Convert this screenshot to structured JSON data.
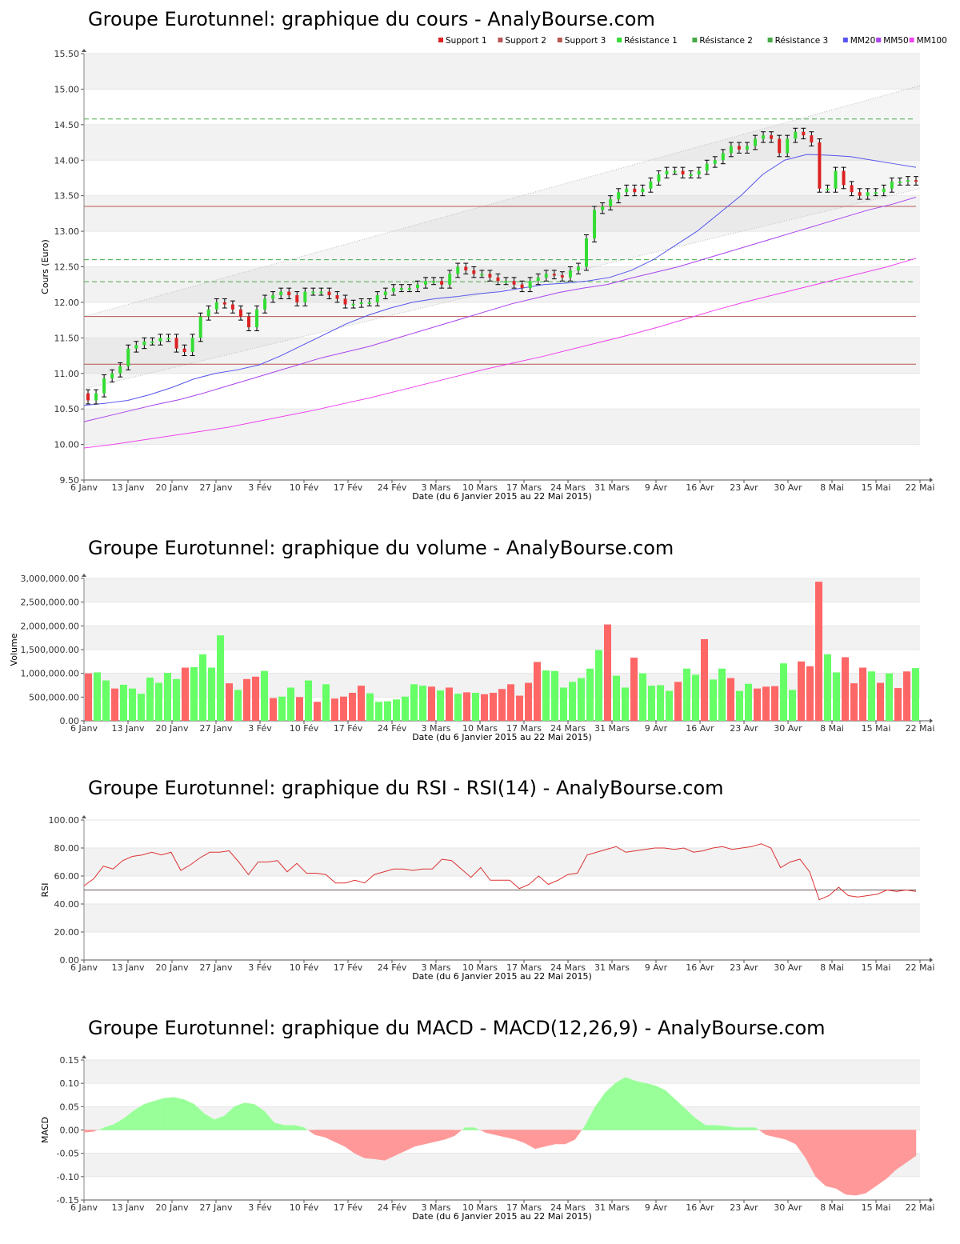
{
  "common": {
    "xlabel": "Date (du 6 Janvier 2015 au 22 Mai 2015)",
    "xticks": [
      "6 Janv",
      "13 Janv",
      "20 Janv",
      "27 Janv",
      "3 Fév",
      "10 Fév",
      "17 Fév",
      "24 Fév",
      "3 Mars",
      "10 Mars",
      "17 Mars",
      "24 Mars",
      "31 Mars",
      "9 Avr",
      "16 Avr",
      "23 Avr",
      "30 Avr",
      "8 Mai",
      "15 Mai",
      "22 Mai"
    ]
  },
  "colors": {
    "up": "#33dd33",
    "down": "#dd2222",
    "vol_up": "#66ff66",
    "vol_down": "#ff6666",
    "support": "#b85555",
    "resistance": "#44aa44",
    "mm20": "#5555ee",
    "mm50": "#aa44ee",
    "mm100": "#ee44ee",
    "rsi": "#dd3333",
    "macd_pos": "#99ff99",
    "macd_neg": "#ff9999"
  },
  "chart_data": [
    {
      "type": "candlestick",
      "title": "Groupe Eurotunnel: graphique du cours - AnalyBourse.com",
      "ylabel": "Cours (Euro)",
      "ylim": [
        9.5,
        15.5
      ],
      "yticks": [
        "9.50",
        "10.00",
        "10.50",
        "11.00",
        "11.50",
        "12.00",
        "12.50",
        "13.00",
        "13.50",
        "14.00",
        "14.50",
        "15.00",
        "15.50"
      ],
      "legend": [
        "Support 1",
        "Support 2",
        "Support 3",
        "Résistance 1",
        "Résistance 2",
        "Résistance 3",
        "MM20",
        "MM50",
        "MM100"
      ],
      "legend_position": "top-right",
      "levels": {
        "support": [
          13.35,
          11.8,
          11.13
        ],
        "resistance": [
          12.6,
          12.29,
          14.58
        ]
      },
      "close": [
        10.62,
        10.72,
        10.93,
        11.0,
        11.1,
        11.35,
        11.4,
        11.45,
        11.45,
        11.5,
        11.5,
        11.35,
        11.3,
        11.5,
        11.8,
        11.9,
        12.0,
        11.97,
        11.9,
        11.8,
        11.65,
        11.9,
        12.05,
        12.1,
        12.15,
        12.1,
        12.0,
        12.15,
        12.15,
        12.15,
        12.1,
        12.05,
        11.97,
        11.98,
        12.0,
        12.0,
        12.1,
        12.15,
        12.2,
        12.2,
        12.2,
        12.25,
        12.3,
        12.3,
        12.25,
        12.4,
        12.5,
        12.45,
        12.4,
        12.4,
        12.35,
        12.3,
        12.3,
        12.25,
        12.2,
        12.3,
        12.35,
        12.4,
        12.38,
        12.35,
        12.45,
        12.5,
        12.9,
        13.3,
        13.35,
        13.45,
        13.55,
        13.6,
        13.55,
        13.6,
        13.7,
        13.8,
        13.85,
        13.85,
        13.8,
        13.8,
        13.85,
        13.95,
        14.0,
        14.1,
        14.2,
        14.15,
        14.2,
        14.3,
        14.35,
        14.3,
        14.1,
        14.3,
        14.4,
        14.35,
        14.25,
        13.6,
        13.6,
        13.85,
        13.65,
        13.55,
        13.5,
        13.55,
        13.55,
        13.6,
        13.7,
        13.7,
        13.72,
        13.7
      ],
      "mm20": [
        10.55,
        10.58,
        10.62,
        10.7,
        10.8,
        10.92,
        11.0,
        11.05,
        11.12,
        11.25,
        11.4,
        11.55,
        11.7,
        11.82,
        11.92,
        12.0,
        12.05,
        12.08,
        12.12,
        12.15,
        12.2,
        12.25,
        12.27,
        12.3,
        12.35,
        12.45,
        12.6,
        12.8,
        13.0,
        13.25,
        13.5,
        13.8,
        14.0,
        14.08,
        14.07,
        14.05,
        14.0,
        13.95,
        13.9
      ],
      "mm50": [
        10.32,
        10.4,
        10.48,
        10.56,
        10.63,
        10.72,
        10.82,
        10.92,
        11.02,
        11.12,
        11.22,
        11.3,
        11.38,
        11.48,
        11.58,
        11.68,
        11.78,
        11.88,
        11.98,
        12.06,
        12.14,
        12.2,
        12.25,
        12.34,
        12.42,
        12.5,
        12.6,
        12.7,
        12.8,
        12.9,
        13.0,
        13.1,
        13.2,
        13.3,
        13.38,
        13.48
      ],
      "mm100": [
        9.95,
        10.0,
        10.06,
        10.12,
        10.18,
        10.24,
        10.32,
        10.4,
        10.48,
        10.57,
        10.66,
        10.76,
        10.86,
        10.96,
        11.06,
        11.15,
        11.24,
        11.34,
        11.44,
        11.54,
        11.65,
        11.77,
        11.89,
        12.0,
        12.1,
        12.2,
        12.3,
        12.4,
        12.5,
        12.62
      ]
    },
    {
      "type": "bar",
      "title": "Groupe Eurotunnel: graphique du volume - AnalyBourse.com",
      "ylabel": "Volume",
      "ylim": [
        0,
        3000000
      ],
      "yticks": [
        "0.00",
        "500,000.00",
        "1,000,000.00",
        "1,500,000.00",
        "2,000,000.00",
        "2,500,000.00",
        "3,000,000.00"
      ],
      "values": [
        1000000,
        1020000,
        850000,
        680000,
        760000,
        680000,
        570000,
        910000,
        800000,
        1010000,
        880000,
        1120000,
        1130000,
        1400000,
        1120000,
        1800000,
        790000,
        650000,
        880000,
        930000,
        1050000,
        480000,
        510000,
        700000,
        500000,
        850000,
        400000,
        770000,
        470000,
        510000,
        590000,
        740000,
        580000,
        400000,
        410000,
        450000,
        510000,
        770000,
        740000,
        720000,
        640000,
        700000,
        570000,
        600000,
        590000,
        560000,
        590000,
        670000,
        770000,
        530000,
        800000,
        1240000,
        1060000,
        1050000,
        700000,
        820000,
        900000,
        1100000,
        1490000,
        2030000,
        950000,
        700000,
        1330000,
        1000000,
        740000,
        750000,
        630000,
        820000,
        1100000,
        970000,
        1720000,
        870000,
        1100000,
        900000,
        630000,
        780000,
        680000,
        720000,
        730000,
        1210000,
        650000,
        1250000,
        1150000,
        2930000,
        1400000,
        1020000,
        1340000,
        790000,
        1120000,
        1040000,
        800000,
        1000000,
        690000,
        1040000,
        1110000
      ],
      "up": [
        false,
        true,
        true,
        false,
        true,
        true,
        true,
        true,
        true,
        true,
        true,
        false,
        true,
        true,
        true,
        true,
        false,
        true,
        false,
        false,
        true,
        false,
        true,
        true,
        false,
        true,
        false,
        true,
        false,
        false,
        false,
        false,
        true,
        true,
        true,
        true,
        true,
        true,
        true,
        false,
        true,
        false,
        true,
        false,
        true,
        false,
        false,
        false,
        false,
        false,
        false,
        false,
        true,
        true,
        true,
        true,
        true,
        true,
        true,
        false,
        true,
        true,
        false,
        true,
        true,
        true,
        true,
        false,
        true,
        true,
        false,
        true,
        true,
        false,
        true,
        true,
        false,
        false,
        false,
        true,
        true,
        false,
        false,
        false,
        true,
        true,
        false,
        false,
        false,
        true,
        false,
        true,
        false,
        false,
        true
      ],
      "colors_meaning": "green = hausse, red = baisse"
    },
    {
      "type": "line",
      "title": "Groupe Eurotunnel: graphique du RSI - RSI(14) - AnalyBourse.com",
      "ylabel": "RSI",
      "ylim": [
        0,
        100
      ],
      "yticks": [
        "0.00",
        "20.00",
        "40.00",
        "60.00",
        "80.00",
        "100.00"
      ],
      "reference_line": 50,
      "values": [
        53,
        58,
        67,
        65,
        71,
        74,
        75,
        77,
        75,
        77,
        64,
        68,
        73,
        77,
        77,
        78,
        70,
        61,
        70,
        70,
        71,
        63,
        69,
        62,
        62,
        61,
        55,
        55,
        57,
        55,
        61,
        63,
        65,
        65,
        64,
        65,
        65,
        72,
        71,
        65,
        59,
        66,
        57,
        57,
        57,
        51,
        54,
        60,
        54,
        57,
        61,
        62,
        75,
        77,
        79,
        81,
        77,
        78,
        79,
        80,
        80,
        79,
        80,
        77,
        78,
        80,
        81,
        79,
        80,
        81,
        83,
        80,
        66,
        70,
        72,
        63,
        43,
        46,
        52,
        46,
        45,
        46,
        47,
        50,
        49,
        50,
        49
      ]
    },
    {
      "type": "area",
      "title": "Groupe Eurotunnel: graphique du MACD - MACD(12,26,9) - AnalyBourse.com",
      "ylabel": "MACD",
      "ylim": [
        -0.15,
        0.15
      ],
      "yticks": [
        "-0.15",
        "-0.10",
        "-0.05",
        "0.00",
        "0.05",
        "0.10",
        "0.15"
      ],
      "values": [
        -0.005,
        -0.003,
        0.005,
        0.012,
        0.025,
        0.042,
        0.055,
        0.062,
        0.068,
        0.07,
        0.065,
        0.055,
        0.035,
        0.022,
        0.03,
        0.05,
        0.058,
        0.055,
        0.04,
        0.015,
        0.01,
        0.01,
        0.005,
        -0.01,
        -0.015,
        -0.025,
        -0.035,
        -0.05,
        -0.06,
        -0.062,
        -0.065,
        -0.055,
        -0.045,
        -0.035,
        -0.03,
        -0.025,
        -0.02,
        -0.012,
        0.005,
        0.005,
        -0.005,
        -0.01,
        -0.015,
        -0.02,
        -0.028,
        -0.04,
        -0.035,
        -0.03,
        -0.03,
        -0.02,
        0.01,
        0.05,
        0.08,
        0.1,
        0.113,
        0.105,
        0.1,
        0.095,
        0.085,
        0.065,
        0.045,
        0.025,
        0.01,
        0.01,
        0.008,
        0.005,
        0.005,
        0.005,
        -0.01,
        -0.015,
        -0.02,
        -0.03,
        -0.06,
        -0.1,
        -0.12,
        -0.125,
        -0.138,
        -0.14,
        -0.135,
        -0.12,
        -0.105,
        -0.085,
        -0.07,
        -0.055
      ]
    }
  ]
}
